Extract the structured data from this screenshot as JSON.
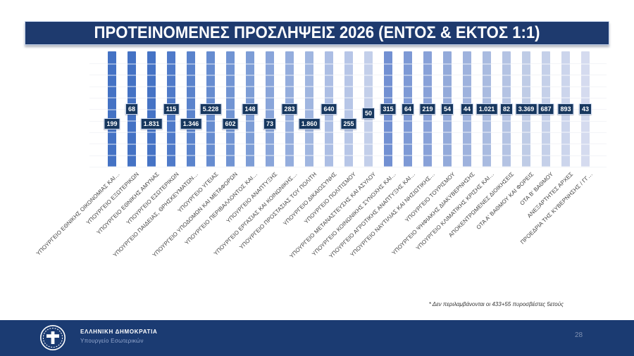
{
  "slide": {
    "title": "ΠΡΟΤΕΙΝΟΜΕΝΕΣ ΠΡΟΣΛΗΨΕΙΣ 2026 (ΕΝΤΟΣ & ΕΚΤΟΣ 1:1)",
    "footnote": "* Δεν περιλαμβάνονται οι 433+55 πυροσβέστες 5ετούς",
    "page_number": "28"
  },
  "footer": {
    "org_name": "ΕΛΛΗΝΙΚΗ ΔΗΜΟΚΡΑΤΙΑ",
    "org_unit": "Υπουργείο Εσωτερικών",
    "emblem_icon": "greek-republic-emblem",
    "bar_color": "#1B3B72"
  },
  "colors": {
    "title_bar_bg": "#1E3A6E",
    "title_text": "#FFFFFF",
    "value_label_bg": "#17375E",
    "value_label_border": "#CCD9F1",
    "gridline": "#EAECF1",
    "category_text": "#414141"
  },
  "chart_data": {
    "type": "bar",
    "title": "ΠΡΟΤΕΙΝΟΜΕΝΕΣ ΠΡΟΣΛΗΨΕΙΣ 2026 (ΕΝΤΟΣ & ΕΚΤΟΣ 1:1)",
    "xlabel": "",
    "ylabel": "",
    "legend": false,
    "grid": true,
    "note_on_rendering": "bars drawn at equal full plot height; values conveyed by data labels; bar fill varies by point from dark to light blue",
    "categories": [
      "ΥΠΟΥΡΓΕΙΟ ΕΘΝΙΚΗΣ ΟΙΚΟΝΟΜΙΑΣ ΚΑΙ…",
      "ΥΠΟΥΡΓΕΙΟ ΕΞΩΤΕΡΙΚΩΝ",
      "ΥΠΟΥΡΓΕΙΟ ΕΘΝΙΚΗΣ ΑΜΥΝΑΣ",
      "ΥΠΟΥΡΓΕΙΟ ΕΣΩΤΕΡΙΚΩΝ",
      "ΥΠΟΥΡΓΕΙΟ ΠΑΙΔΕΙΑΣ, ΘΡΗΣΚΕΥΜΑΤΩΝ…",
      "ΥΠΟΥΡΓΕΙΟ ΥΓΕΙΑΣ",
      "ΥΠΟΥΡΓΕΙΟ ΥΠΟΔΟΜΩΝ ΚΑΙ ΜΕΤΑΦΟΡΩΝ",
      "ΥΠΟΥΡΓΕΙΟ ΠΕΡΙΒΑΛΛΟΝΤΟΣ ΚΑΙ…",
      "ΥΠΟΥΡΓΕΙΟ ΑΝΑΠΤΥΞΗΣ",
      "ΥΠΟΥΡΓΕΙΟ ΕΡΓΑΣΙΑΣ ΚΑΙ ΚΟΙΝΩΝΙΚΗΣ…",
      "ΥΠΟΥΡΓΕΙΟ ΠΡΟΣΤΑΣΙΑΣ ΤΟΥ ΠΟΛΙΤΗ",
      "ΥΠΟΥΡΓΕΙΟ ΔΙΚΑΙΟΣΥΝΗΣ",
      "ΥΠΟΥΡΓΕΙΟ ΠΟΛΙΤΙΣΜΟΥ",
      "ΥΠΟΥΡΓΕΙΟ ΜΕΤΑΝΑΣΤΕΥΣΗΣ ΚΑΙ ΑΣΥΛΟΥ",
      "ΥΠΟΥΡΓΕΙΟ ΚΟΙΝΩΝΙΚΗΣ ΣΥΝΟΧΗΣ ΚΑΙ…",
      "ΥΠΟΥΡΓΕΙΟ ΑΓΡΟΤΙΚΗΣ ΑΝΑΠΤΥΞΗΣ ΚΑΙ…",
      "ΥΠΟΥΡΓΕΙΟ ΝΑΥΤΙΛΙΑΣ ΚΑΙ ΝΗΣΙΩΤΙΚΗΣ…",
      "ΥΠΟΥΡΓΕΙΟ ΤΟΥΡΙΣΜΟΥ",
      "ΥΠΟΥΡΓΕΙΟ ΨΗΦΙΑΚΗΣ ΔΙΑΚΥΒΕΡΝΗΣΗΣ",
      "ΥΠΟΥΡΓΕΙΟ ΚΛΙΜΑΤΙΚΗΣ ΚΡΙΣΗΣ ΚΑΙ…",
      "ΑΠΟΚΕΝΤΡΩΜΕΝΕΣ ΔΙΟΙΚΗΣΕΙΣ",
      "ΟΤΑ Α' ΒΑΘΜΟΥ ΚΑΙ ΦΟΡΕΙΣ",
      "ΟΤΑ Β' ΒΑΘΜΟΥ",
      "ΑΝΕΞΑΡΤΗΤΕΣ ΑΡΧΕΣ",
      "ΠΡΟΕΔΡΙΑ ΤΗΣ ΚΥΒΕΡΝΗΣΗΣ / ΓΓ…"
    ],
    "values": [
      199,
      68,
      1831,
      115,
      1346,
      5228,
      602,
      148,
      73,
      283,
      1860,
      640,
      255,
      50,
      315,
      64,
      219,
      54,
      44,
      1021,
      82,
      3369,
      687,
      893,
      43
    ],
    "value_labels": [
      "199",
      "68",
      "1.831",
      "115",
      "1.346",
      "5.228",
      "602",
      "148",
      "73",
      "283",
      "1.860",
      "640",
      "255",
      "50",
      "315",
      "64",
      "219",
      "54",
      "44",
      "1.021",
      "82",
      "3.369",
      "687",
      "893",
      "43"
    ],
    "label_row": [
      "down",
      "up",
      "down",
      "up",
      "down",
      "up",
      "down",
      "up",
      "down",
      "up",
      "down",
      "up",
      "down",
      "mid",
      "up",
      "up",
      "up",
      "up",
      "up",
      "up",
      "up",
      "up",
      "up",
      "up",
      "up"
    ],
    "bar_colors": [
      "#4472C4",
      "#4472C4",
      "#4573C5",
      "#4F7AC9",
      "#5A83CC",
      "#668CD0",
      "#7194D3",
      "#7D9DD6",
      "#89A5DA",
      "#94ADDD",
      "#A0B6E0",
      "#ACBEE4",
      "#B7C6E7",
      "#C3CFEA",
      "#7290D2",
      "#7D99D5",
      "#88A1D8",
      "#93AADA",
      "#9EB2DD",
      "#A9BBE0",
      "#B4C3E3",
      "#BFCCE6",
      "#C5D0E9",
      "#CCD5EC",
      "#D5DBEF"
    ]
  }
}
